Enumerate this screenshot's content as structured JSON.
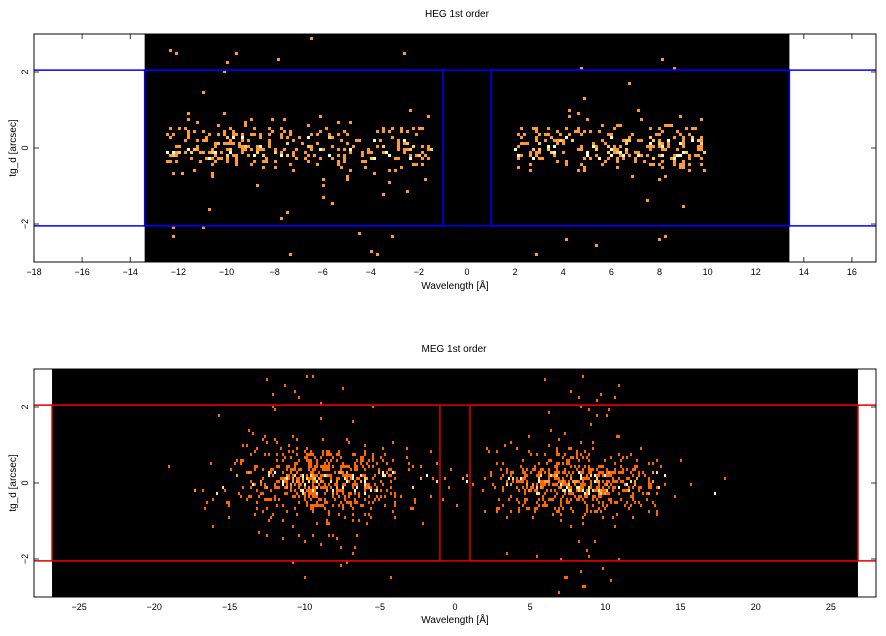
{
  "chart_data": [
    {
      "type": "heatmap",
      "title": "HEG 1st order",
      "xlabel": "Wavelength [Å]",
      "ylabel": "tg_d [arcsec]",
      "xlim": [
        -18,
        17
      ],
      "ylim": [
        -3,
        3
      ],
      "x_ticks": [
        -18,
        -16,
        -14,
        -12,
        -10,
        -8,
        -6,
        -4,
        -2,
        0,
        2,
        4,
        6,
        8,
        10,
        12,
        14,
        16
      ],
      "y_ticks": [
        -2,
        0,
        2
      ],
      "grid": false,
      "data_extent_x": [
        -13.4,
        13.4
      ],
      "background_color": "#000000",
      "count_colors": [
        "#ff9933",
        "#ffcc44",
        "#ffffcc"
      ],
      "regions_color": "#0000ff",
      "regions": [
        {
          "x": [
            -13.4,
            -1.0
          ],
          "y": [
            -2.05,
            2.05
          ]
        },
        {
          "x": [
            1.0,
            13.4
          ],
          "y": [
            -2.05,
            2.05
          ]
        }
      ],
      "extraction_lines_y": [
        -2.05,
        2.05
      ],
      "event_clusters": [
        {
          "x_range": [
            -12.5,
            -1.5
          ],
          "y_sigma": 0.35,
          "density": 330
        },
        {
          "x_range": [
            2.0,
            10.0
          ],
          "y_sigma": 0.35,
          "density": 260
        }
      ]
    },
    {
      "type": "heatmap",
      "title": "MEG 1st order",
      "xlabel": "Wavelength [Å]",
      "ylabel": "tg_d [arcsec]",
      "xlim": [
        -28,
        28
      ],
      "ylim": [
        -3,
        3
      ],
      "x_ticks": [
        -25,
        -20,
        -15,
        -10,
        -5,
        0,
        5,
        10,
        15,
        20,
        25
      ],
      "y_ticks": [
        -2,
        0,
        2
      ],
      "grid": false,
      "data_extent_x": [
        -26.8,
        26.8
      ],
      "background_color": "#000000",
      "count_colors": [
        "#ff6600",
        "#ff9933",
        "#ffdd66",
        "#ffffcc"
      ],
      "regions_color": "#dd0000",
      "regions": [
        {
          "x": [
            -26.8,
            -1.0
          ],
          "y": [
            -2.05,
            2.05
          ]
        },
        {
          "x": [
            1.0,
            26.8
          ],
          "y": [
            -2.05,
            2.05
          ]
        }
      ],
      "extraction_lines_y": [
        -2.05,
        2.05
      ],
      "event_clusters": [
        {
          "x_center": -9.0,
          "x_sigma": 3.0,
          "y_sigma": 0.45,
          "density": 620
        },
        {
          "x_center": 8.0,
          "x_sigma": 2.8,
          "y_sigma": 0.42,
          "density": 620
        }
      ]
    }
  ]
}
